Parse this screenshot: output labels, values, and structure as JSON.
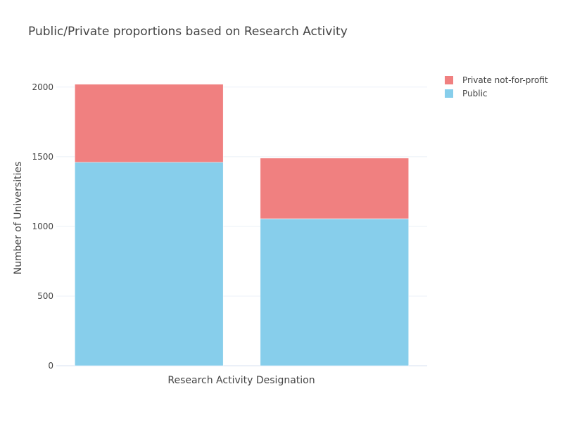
{
  "chart_data": {
    "type": "bar",
    "barmode": "stack",
    "title": "Public/Private proportions based on Research Activity",
    "xlabel": "Research Activity Designation",
    "ylabel": "Number of Universities",
    "categories": [
      "",
      ""
    ],
    "series": [
      {
        "name": "Public",
        "color": "#87CEEB",
        "values": [
          1460,
          1055
        ]
      },
      {
        "name": "Private not-for-profit",
        "color": "#F08080",
        "values": [
          560,
          435
        ]
      }
    ],
    "ylim": [
      0,
      2120
    ],
    "yticks": [
      0,
      500,
      1000,
      1500,
      2000
    ],
    "grid": true,
    "legend_position": "top-right",
    "legend_order": [
      "Private not-for-profit",
      "Public"
    ]
  }
}
